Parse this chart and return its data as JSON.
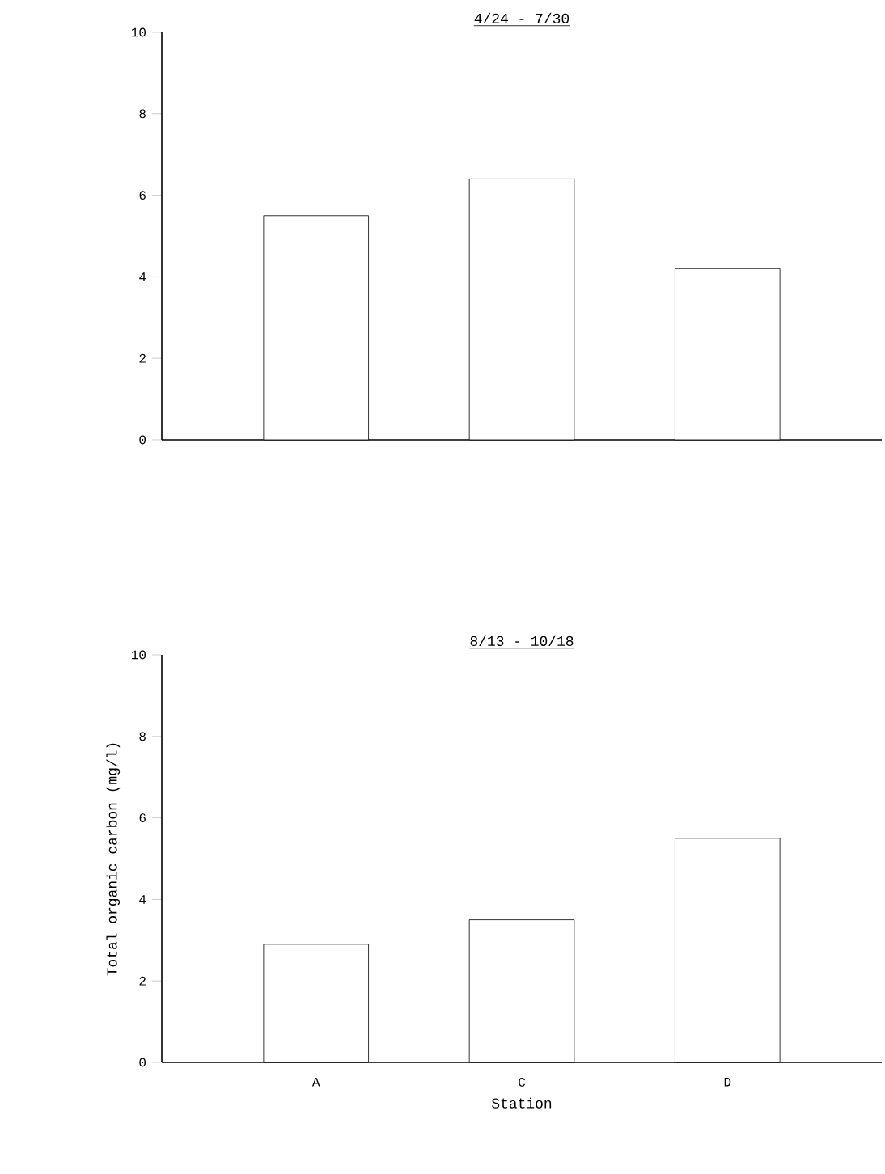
{
  "chart_data": [
    {
      "type": "bar",
      "title": "4/24 - 7/30",
      "categories": [
        null,
        null,
        null
      ],
      "values": [
        5.5,
        6.4,
        4.2
      ],
      "color": "#ffffff",
      "ylim": [
        0,
        10
      ],
      "yticks": [
        0,
        2,
        4,
        6,
        8,
        10
      ],
      "tick_labels": "y",
      "grid": false
    },
    {
      "type": "bar",
      "title": "8/13 - 10/18",
      "xlabel": "Station",
      "ylabel": "Total organic carbon (mg/l)",
      "categories": [
        "A",
        "C",
        "D"
      ],
      "values": [
        2.9,
        3.5,
        5.5
      ],
      "color": "#ffffff",
      "ylim": [
        0,
        10
      ],
      "yticks": [
        0,
        2,
        4,
        6,
        8,
        10
      ],
      "grid": false
    }
  ]
}
